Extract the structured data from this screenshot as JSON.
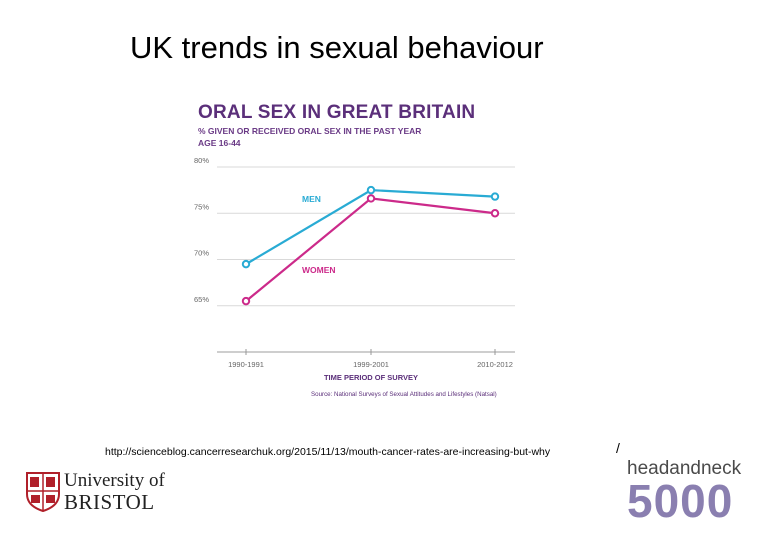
{
  "slide": {
    "title": "UK trends in sexual behaviour",
    "source_url": "http://scienceblog.cancerresearchuk.org/2015/11/13/mouth-cancer-rates-are-increasing-but-why",
    "slash": "/"
  },
  "logos": {
    "bristol_line1": "University of",
    "bristol_line2": "BRISTOL",
    "hn_word": "headandneck",
    "hn_number": "5000"
  },
  "chart_data": {
    "type": "line",
    "title": "ORAL SEX IN GREAT BRITAIN",
    "subtitle_1": "% GIVEN OR RECEIVED ORAL SEX IN THE PAST YEAR",
    "subtitle_2": "AGE 16-44",
    "xlabel": "TIME PERIOD OF SURVEY",
    "ylabel": "",
    "source": "Source: National Surveys of Sexual Attitudes and Lifestyles (Natsal)",
    "categories": [
      "1990-1991",
      "1999-2001",
      "2010-2012"
    ],
    "ylim": [
      60,
      80
    ],
    "yticks": [
      80,
      75,
      70,
      65
    ],
    "ytick_labels": [
      "80%",
      "75%",
      "70%",
      "65%"
    ],
    "grid": true,
    "series": [
      {
        "name": "MEN",
        "color": "#29abd4",
        "values": [
          69.5,
          77.5,
          76.8
        ]
      },
      {
        "name": "WOMEN",
        "color": "#cc2a8a",
        "values": [
          65.5,
          76.6,
          75
        ]
      }
    ]
  }
}
